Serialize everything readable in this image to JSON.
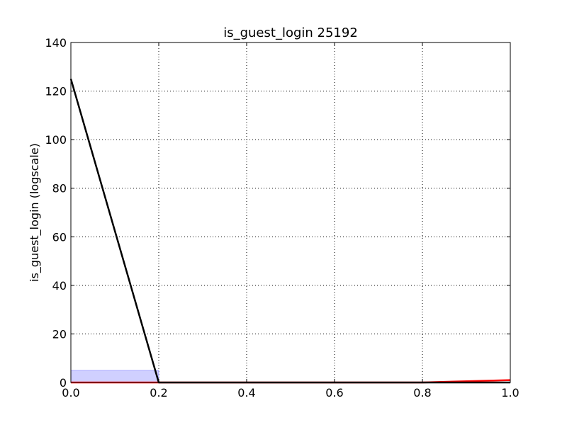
{
  "chart_data": {
    "type": "line",
    "title": "is_guest_login 25192",
    "xlabel": "",
    "ylabel": "is_guest_login (logscale)",
    "xlim": [
      0.0,
      1.0
    ],
    "ylim": [
      0,
      140
    ],
    "grid": true,
    "x_ticks": [
      "0.0",
      "0.2",
      "0.4",
      "0.6",
      "0.8",
      "1.0"
    ],
    "y_ticks": [
      "0",
      "20",
      "40",
      "60",
      "80",
      "100",
      "120",
      "140"
    ],
    "series": [
      {
        "color": "#000000",
        "x": [
          0.0,
          0.2,
          0.4,
          0.6,
          0.8,
          1.0
        ],
        "y": [
          125,
          0,
          0,
          0,
          0,
          0
        ]
      },
      {
        "color": "#ff0000",
        "x": [
          0.0,
          0.2,
          0.4,
          0.6,
          0.8,
          1.0
        ],
        "y": [
          0,
          0,
          0,
          0,
          0,
          1
        ]
      }
    ],
    "band": {
      "color": "#ccccff",
      "x": [
        0.0,
        0.2
      ],
      "y": [
        0,
        5
      ]
    }
  }
}
